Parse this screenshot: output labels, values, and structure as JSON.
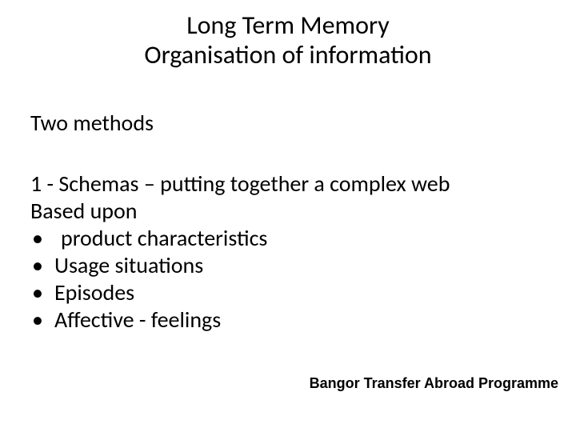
{
  "colors": {
    "background": "#ffffff",
    "text": "#000000"
  },
  "typography": {
    "title_fontsize": 32,
    "body_fontsize": 28,
    "footer_fontsize": 18,
    "title_family": "Calibri",
    "footer_family": "Arial",
    "footer_weight": "bold"
  },
  "title": {
    "line1": "Long Term Memory",
    "line2": "Organisation of information"
  },
  "subheading": "Two methods",
  "body": {
    "line1": "1 - Schemas – putting together a complex web",
    "line2": "Based upon",
    "bullets": [
      " product characteristics",
      "Usage situations",
      "Episodes",
      "Affective - feelings"
    ]
  },
  "footer": "Bangor Transfer Abroad Programme"
}
